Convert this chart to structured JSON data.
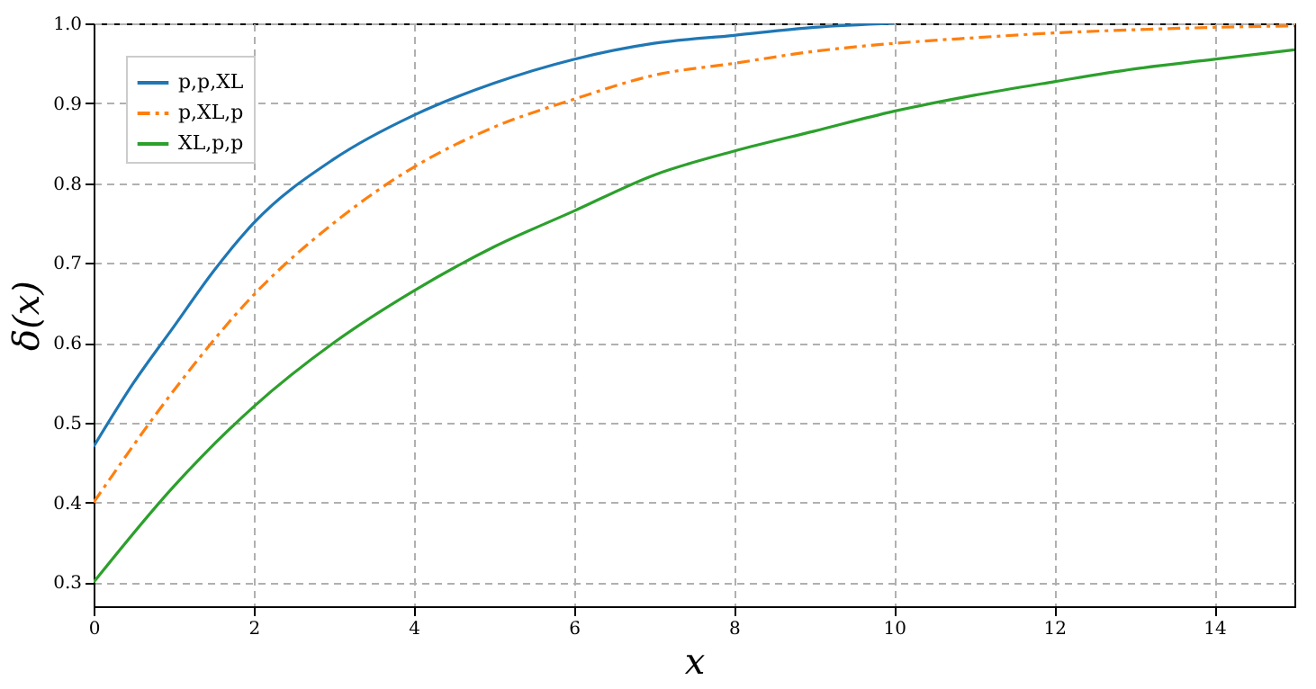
{
  "chart_data": {
    "type": "line",
    "xlabel": "x",
    "ylabel": "δ(x)",
    "xlim": [
      0,
      15
    ],
    "ylim": [
      0.27,
      1.0
    ],
    "xticks": [
      0,
      2,
      4,
      6,
      8,
      10,
      12,
      14
    ],
    "yticks": [
      0.3,
      0.4,
      0.5,
      0.6,
      0.7,
      0.8,
      0.9,
      {
        "value": 1,
        "label": "1.0"
      }
    ],
    "grid": true,
    "legend": "top left",
    "marker": "none",
    "series": [
      {
        "name": "p,p,XL",
        "color": "#1f77b4",
        "line_style": "solid",
        "x": [
          0,
          0.5,
          1,
          1.5,
          2,
          3,
          4,
          5,
          6,
          7,
          8,
          9,
          10
        ],
        "values": [
          0.47,
          0.55,
          0.62,
          0.69,
          0.75,
          0.83,
          0.885,
          0.925,
          0.955,
          0.975,
          0.985,
          0.995,
          1.0
        ]
      },
      {
        "name": "p,XL,p",
        "color": "#ff7f0e",
        "line_style": "dashdot",
        "x": [
          0,
          1,
          2,
          3,
          4,
          5,
          6,
          7,
          8,
          9,
          10,
          11,
          12,
          13,
          14,
          15
        ],
        "values": [
          0.4,
          0.54,
          0.66,
          0.75,
          0.82,
          0.87,
          0.905,
          0.935,
          0.95,
          0.965,
          0.975,
          0.982,
          0.988,
          0.992,
          0.995,
          0.997
        ]
      },
      {
        "name": "XL,p,p",
        "color": "#2ca02c",
        "line_style": "solid",
        "x": [
          0,
          1,
          2,
          3,
          4,
          5,
          6,
          7,
          8,
          9,
          10,
          11,
          12,
          13,
          14,
          15
        ],
        "values": [
          0.3,
          0.42,
          0.52,
          0.6,
          0.665,
          0.72,
          0.765,
          0.81,
          0.84,
          0.865,
          0.89,
          0.91,
          0.927,
          0.943,
          0.955,
          0.967
        ]
      }
    ]
  }
}
